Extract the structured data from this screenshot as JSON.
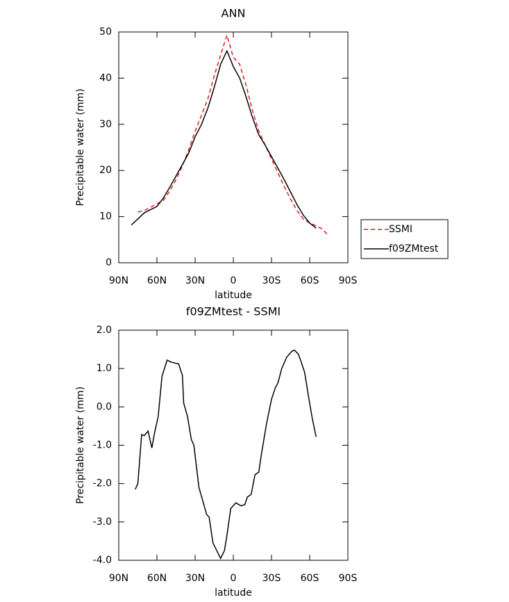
{
  "chart_data": [
    {
      "type": "line",
      "title": "ANN",
      "xlabel": "latitude",
      "ylabel": "Precipitable water (mm)",
      "x": [
        80,
        75,
        70,
        65,
        60,
        55,
        50,
        45,
        40,
        35,
        30,
        25,
        20,
        15,
        10,
        5,
        0,
        -5,
        -10,
        -15,
        -20,
        -25,
        -30,
        -35,
        -40,
        -45,
        -50,
        -55,
        -60,
        -65,
        -70,
        -75
      ],
      "series": [
        {
          "name": "SSMI",
          "color": "#e31a1c",
          "dash": true,
          "values": [
            null,
            11,
            11.3,
            12,
            12.8,
            13.5,
            15.5,
            18,
            21,
            24.5,
            28.5,
            32,
            35.5,
            40.5,
            45,
            49.3,
            44.5,
            43,
            38.5,
            33,
            28.5,
            25.5,
            22.5,
            19.5,
            16.5,
            13.8,
            11.3,
            9.5,
            8.6,
            8,
            7.3,
            5.8
          ]
        },
        {
          "name": "f09ZMtest",
          "color": "#000000",
          "dash": false,
          "values": [
            8.2,
            9.5,
            10.8,
            11.5,
            12.2,
            14,
            16.3,
            18.8,
            21.3,
            23.8,
            27.3,
            30,
            33.5,
            38,
            43,
            45.9,
            42.5,
            40,
            36,
            31.5,
            27.7,
            25.5,
            23,
            20.5,
            18,
            15.3,
            12.6,
            10.3,
            8.6,
            7.5,
            null,
            null
          ]
        }
      ],
      "xlim": [
        90,
        -90
      ],
      "xticks": [
        {
          "value": 90,
          "label": "90N"
        },
        {
          "value": 60,
          "label": "60N"
        },
        {
          "value": 30,
          "label": "30N"
        },
        0,
        {
          "value": -30,
          "label": "30S"
        },
        {
          "value": -60,
          "label": "60S"
        },
        {
          "value": -90,
          "label": "90S"
        }
      ],
      "ylim": [
        0,
        50
      ],
      "yticks": [
        0,
        10,
        20,
        30,
        40,
        50
      ],
      "legend": "right"
    },
    {
      "type": "line",
      "title": "f09ZMtest - SSMI",
      "xlabel": "latitude",
      "ylabel": "Precipitable water (mm)",
      "x": [
        77,
        75,
        72,
        70,
        67,
        64,
        62,
        59,
        56,
        52,
        49,
        43,
        40,
        39,
        36,
        33,
        31,
        27,
        21,
        19,
        16,
        10,
        7,
        5,
        2,
        -2,
        -6,
        -9,
        -11,
        -14,
        -17,
        -20,
        -22,
        -26,
        -30,
        -33,
        -35,
        -38,
        -42,
        -46,
        -48,
        -51,
        -53,
        -56,
        -59,
        -62,
        -65
      ],
      "values": [
        -2.15,
        -2,
        -0.72,
        -0.75,
        -0.63,
        -1.07,
        -0.7,
        -0.25,
        0.8,
        1.22,
        1.17,
        1.12,
        0.82,
        0.1,
        -0.25,
        -0.85,
        -1,
        -2.1,
        -2.8,
        -2.88,
        -3.55,
        -3.95,
        -3.75,
        -3.35,
        -2.65,
        -2.5,
        -2.58,
        -2.55,
        -2.35,
        -2.28,
        -1.77,
        -1.7,
        -1.25,
        -0.45,
        0.2,
        0.5,
        0.62,
        1,
        1.3,
        1.45,
        1.48,
        1.38,
        1.2,
        0.9,
        0.28,
        -0.3,
        -0.78
      ],
      "color": "#000000",
      "xlim": [
        90,
        -90
      ],
      "xticks": [
        {
          "value": 90,
          "label": "90N"
        },
        {
          "value": 60,
          "label": "60N"
        },
        {
          "value": 30,
          "label": "30N"
        },
        0,
        {
          "value": -30,
          "label": "30S"
        },
        {
          "value": -60,
          "label": "60S"
        },
        {
          "value": -90,
          "label": "90S"
        }
      ],
      "ylim": [
        -4,
        2
      ],
      "yticks": [
        {
          "value": 2,
          "label": "2.0"
        },
        {
          "value": 1,
          "label": "1.0"
        },
        {
          "value": 0,
          "label": "0.0"
        },
        {
          "value": -1,
          "label": "-1.0"
        },
        {
          "value": -2,
          "label": "-2.0"
        },
        {
          "value": -3,
          "label": "-3.0"
        },
        {
          "value": -4,
          "label": "-4.0"
        }
      ]
    }
  ]
}
